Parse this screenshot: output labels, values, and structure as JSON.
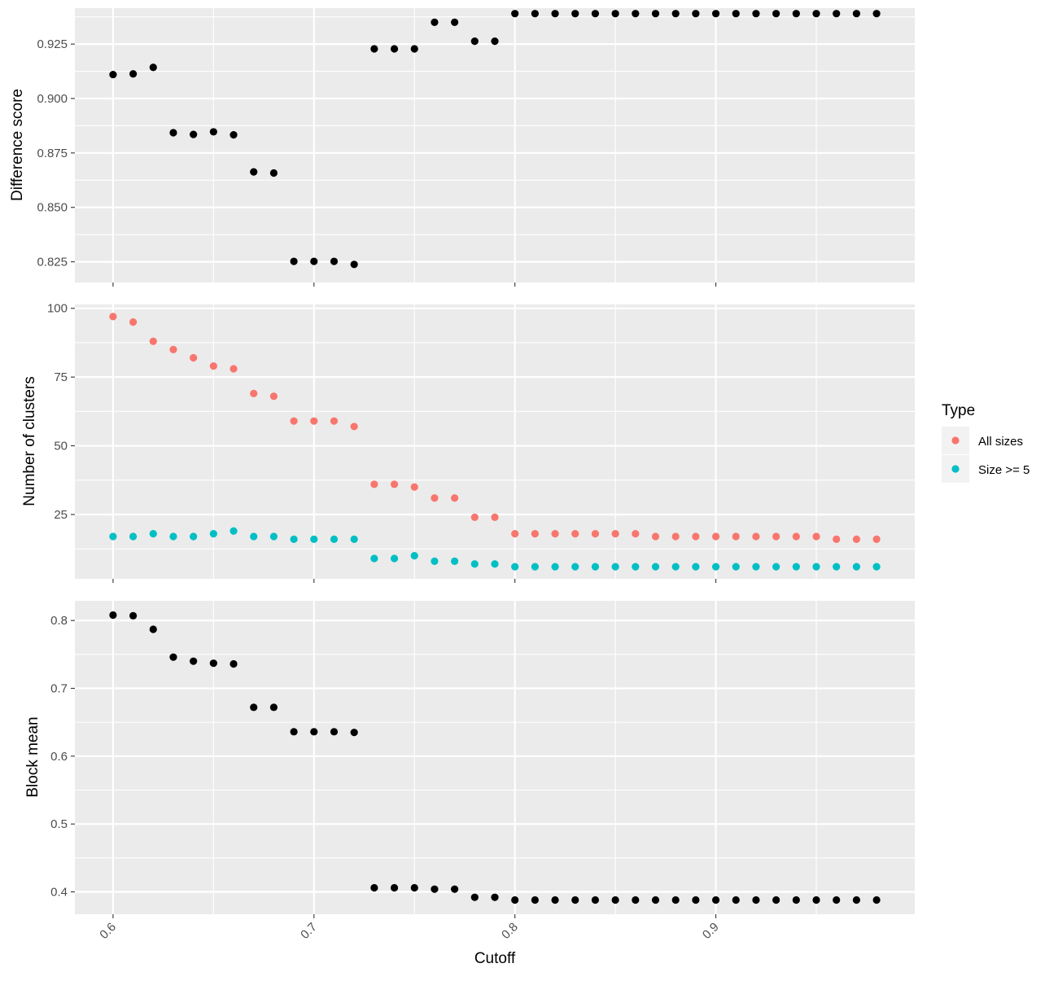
{
  "chart_data": {
    "type": "scatter",
    "xlabel": "Cutoff",
    "x_ticks": [
      0.6,
      0.7,
      0.8,
      0.9
    ],
    "x_tick_labels": [
      "0.6",
      "0.7",
      "0.8",
      "0.9"
    ],
    "xlim": [
      0.581,
      0.999
    ],
    "grid": true,
    "legend": {
      "title": "Type",
      "placement": "right",
      "entries": [
        {
          "label": "All sizes",
          "color": "#F8766D"
        },
        {
          "label": "Size >= 5",
          "color": "#00BFC4"
        }
      ]
    },
    "panels": [
      {
        "ylabel": "Difference score",
        "ylim": [
          0.8155,
          0.9415
        ],
        "y_ticks": [
          0.825,
          0.85,
          0.875,
          0.9,
          0.925
        ],
        "y_tick_labels": [
          "0.825",
          "0.850",
          "0.875",
          "0.900",
          "0.925"
        ],
        "series": [
          {
            "color": "#000000",
            "x": [
              0.6,
              0.61,
              0.62,
              0.63,
              0.64,
              0.65,
              0.66,
              0.67,
              0.68,
              0.69,
              0.7,
              0.71,
              0.72,
              0.73,
              0.74,
              0.75,
              0.76,
              0.77,
              0.78,
              0.79,
              0.8,
              0.81,
              0.82,
              0.83,
              0.84,
              0.85,
              0.86,
              0.87,
              0.88,
              0.89,
              0.9,
              0.91,
              0.92,
              0.93,
              0.94,
              0.95,
              0.96,
              0.97,
              0.98
            ],
            "y": [
              0.911,
              0.9113,
              0.9143,
              0.8843,
              0.8835,
              0.8847,
              0.8833,
              0.8663,
              0.8658,
              0.8252,
              0.8252,
              0.8252,
              0.8238,
              0.9228,
              0.9228,
              0.9228,
              0.935,
              0.935,
              0.9263,
              0.9263,
              0.939,
              0.939,
              0.939,
              0.939,
              0.939,
              0.939,
              0.939,
              0.939,
              0.939,
              0.939,
              0.939,
              0.939,
              0.939,
              0.939,
              0.939,
              0.939,
              0.939,
              0.939,
              0.939
            ]
          }
        ]
      },
      {
        "ylabel": "Number of clusters",
        "ylim": [
          1.6,
          101.4
        ],
        "y_ticks": [
          25,
          50,
          75,
          100
        ],
        "y_tick_labels": [
          "25",
          "50",
          "75",
          "100"
        ],
        "series": [
          {
            "name": "All sizes",
            "color": "#F8766D",
            "x": [
              0.6,
              0.61,
              0.62,
              0.63,
              0.64,
              0.65,
              0.66,
              0.67,
              0.68,
              0.69,
              0.7,
              0.71,
              0.72,
              0.73,
              0.74,
              0.75,
              0.76,
              0.77,
              0.78,
              0.79,
              0.8,
              0.81,
              0.82,
              0.83,
              0.84,
              0.85,
              0.86,
              0.87,
              0.88,
              0.89,
              0.9,
              0.91,
              0.92,
              0.93,
              0.94,
              0.95,
              0.96,
              0.97,
              0.98
            ],
            "y": [
              97,
              95,
              88,
              85,
              82,
              79,
              78,
              69,
              68,
              59,
              59,
              59,
              57,
              36,
              36,
              35,
              31,
              31,
              24,
              24,
              18,
              18,
              18,
              18,
              18,
              18,
              18,
              17,
              17,
              17,
              17,
              17,
              17,
              17,
              17,
              17,
              16,
              16,
              16
            ]
          },
          {
            "name": "Size >= 5",
            "color": "#00BFC4",
            "x": [
              0.6,
              0.61,
              0.62,
              0.63,
              0.64,
              0.65,
              0.66,
              0.67,
              0.68,
              0.69,
              0.7,
              0.71,
              0.72,
              0.73,
              0.74,
              0.75,
              0.76,
              0.77,
              0.78,
              0.79,
              0.8,
              0.81,
              0.82,
              0.83,
              0.84,
              0.85,
              0.86,
              0.87,
              0.88,
              0.89,
              0.9,
              0.91,
              0.92,
              0.93,
              0.94,
              0.95,
              0.96,
              0.97,
              0.98
            ],
            "y": [
              17,
              17,
              18,
              17,
              17,
              18,
              19,
              17,
              17,
              16,
              16,
              16,
              16,
              9,
              9,
              10,
              8,
              8,
              7,
              7,
              6,
              6,
              6,
              6,
              6,
              6,
              6,
              6,
              6,
              6,
              6,
              6,
              6,
              6,
              6,
              6,
              6,
              6,
              6
            ]
          }
        ]
      },
      {
        "ylabel": "Block mean",
        "ylim": [
          0.367,
          0.829
        ],
        "y_ticks": [
          0.4,
          0.5,
          0.6,
          0.7,
          0.8
        ],
        "y_tick_labels": [
          "0.4",
          "0.5",
          "0.6",
          "0.7",
          "0.8"
        ],
        "series": [
          {
            "color": "#000000",
            "x": [
              0.6,
              0.61,
              0.62,
              0.63,
              0.64,
              0.65,
              0.66,
              0.67,
              0.68,
              0.69,
              0.7,
              0.71,
              0.72,
              0.73,
              0.74,
              0.75,
              0.76,
              0.77,
              0.78,
              0.79,
              0.8,
              0.81,
              0.82,
              0.83,
              0.84,
              0.85,
              0.86,
              0.87,
              0.88,
              0.89,
              0.9,
              0.91,
              0.92,
              0.93,
              0.94,
              0.95,
              0.96,
              0.97,
              0.98
            ],
            "y": [
              0.808,
              0.807,
              0.787,
              0.746,
              0.74,
              0.737,
              0.736,
              0.672,
              0.672,
              0.636,
              0.636,
              0.636,
              0.635,
              0.406,
              0.406,
              0.406,
              0.404,
              0.404,
              0.392,
              0.392,
              0.388,
              0.388,
              0.388,
              0.388,
              0.388,
              0.388,
              0.388,
              0.388,
              0.388,
              0.388,
              0.388,
              0.388,
              0.388,
              0.388,
              0.388,
              0.388,
              0.388,
              0.388,
              0.388
            ]
          }
        ]
      }
    ]
  }
}
